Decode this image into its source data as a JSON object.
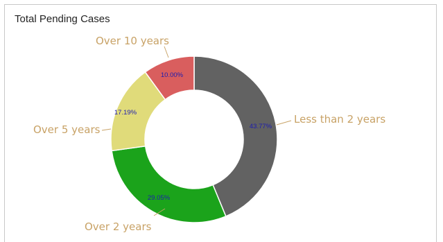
{
  "chart_data": {
    "type": "pie",
    "variant": "donut",
    "title": "Total Pending Cases",
    "categories": [
      "Less than 2 years",
      "Over 2 years",
      "Over 5 years",
      "Over 10 years"
    ],
    "values": [
      43.77,
      29.05,
      17.19,
      10.0
    ],
    "value_labels": [
      "43.77%",
      "29.05%",
      "17.19%",
      "10.00%"
    ],
    "colors": [
      "#626262",
      "#1ba31b",
      "#e0db7a",
      "#d95e5e"
    ],
    "label_color": "#c8a266",
    "value_label_color": "#1c1cb0",
    "legend": "none"
  }
}
